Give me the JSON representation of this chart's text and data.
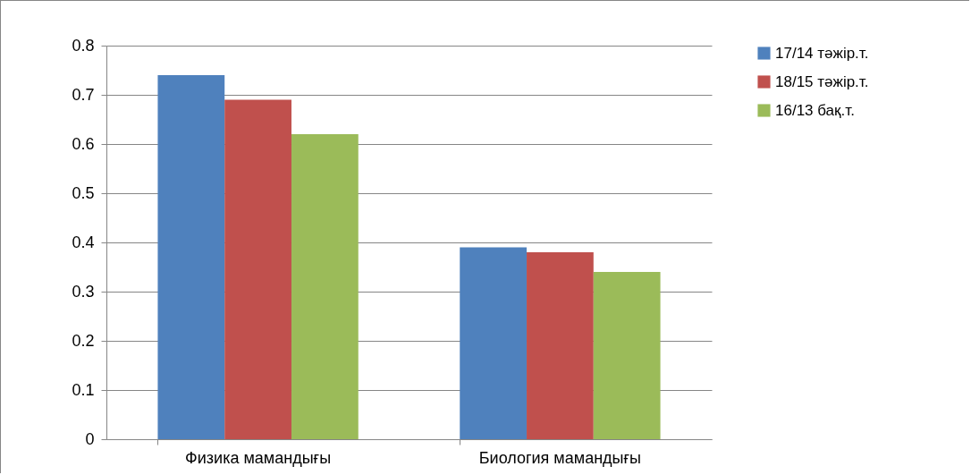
{
  "chart_data": {
    "type": "bar",
    "categories": [
      "Физика мамандығы",
      "Биология мамандығы"
    ],
    "series": [
      {
        "name": "17/14 тәжір.т.",
        "color": "#4f81bd",
        "values": [
          0.74,
          0.39
        ]
      },
      {
        "name": "18/15 тәжір.т.",
        "color": "#c0504d",
        "values": [
          0.69,
          0.38
        ]
      },
      {
        "name": "16/13 бақ.т.",
        "color": "#9bbb59",
        "values": [
          0.62,
          0.34
        ]
      }
    ],
    "ylim": [
      0,
      0.8
    ],
    "yticks": [
      0,
      0.1,
      0.2,
      0.3,
      0.4,
      0.5,
      0.6,
      0.7,
      0.8
    ],
    "grid": "y",
    "legend": "right"
  }
}
